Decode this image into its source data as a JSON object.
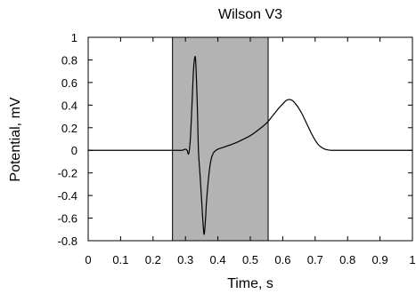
{
  "chart_data": {
    "type": "line",
    "title": "Wilson V3",
    "xlabel": "Time, s",
    "ylabel": "Potential, mV",
    "xlim": [
      0,
      1
    ],
    "ylim": [
      -0.8,
      1
    ],
    "xticks": [
      0,
      0.1,
      0.2,
      0.3,
      0.4,
      0.5,
      0.6,
      0.7,
      0.8,
      0.9,
      1
    ],
    "xtick_labels": [
      "0",
      "0.1",
      "0.2",
      "0.3",
      "0.4",
      "0.5",
      "0.6",
      "0.7",
      "0.8",
      "0.9",
      "1"
    ],
    "yticks": [
      -0.8,
      -0.6,
      -0.4,
      -0.2,
      0,
      0.2,
      0.4,
      0.6,
      0.8,
      1
    ],
    "ytick_labels": [
      "-0.8",
      "-0.6",
      "-0.4",
      "-0.2",
      "0",
      "0.2",
      "0.4",
      "0.6",
      "0.8",
      "1"
    ],
    "grid": false,
    "shaded_region": {
      "x_start": 0.26,
      "x_end": 0.555,
      "color": "#b3b3b3"
    },
    "line_color": "#000000",
    "series": [
      {
        "x": [
          0,
          0.26,
          0.275,
          0.29,
          0.3,
          0.305,
          0.31,
          0.315,
          0.32,
          0.325,
          0.33,
          0.333,
          0.337,
          0.34,
          0.345,
          0.35,
          0.355,
          0.358,
          0.362,
          0.365,
          0.37,
          0.375,
          0.38,
          0.385,
          0.39,
          0.4,
          0.42,
          0.45,
          0.48,
          0.5,
          0.52,
          0.55,
          0.57,
          0.59,
          0.6,
          0.61,
          0.62,
          0.63,
          0.64,
          0.65,
          0.66,
          0.67,
          0.68,
          0.69,
          0.7,
          0.71,
          0.72,
          0.73,
          0.74,
          0.75,
          0.76,
          0.8,
          1.0
        ],
        "y": [
          0,
          0,
          0,
          0,
          0.01,
          0,
          -0.03,
          0.1,
          0.4,
          0.72,
          0.83,
          0.7,
          0.35,
          0.0,
          -0.22,
          -0.45,
          -0.68,
          -0.74,
          -0.6,
          -0.45,
          -0.28,
          -0.15,
          -0.07,
          -0.03,
          -0.01,
          0.01,
          0.03,
          0.06,
          0.1,
          0.13,
          0.17,
          0.24,
          0.31,
          0.38,
          0.41,
          0.44,
          0.45,
          0.44,
          0.41,
          0.37,
          0.32,
          0.26,
          0.2,
          0.14,
          0.09,
          0.05,
          0.025,
          0.01,
          0.003,
          0,
          0,
          0,
          0
        ]
      }
    ]
  }
}
